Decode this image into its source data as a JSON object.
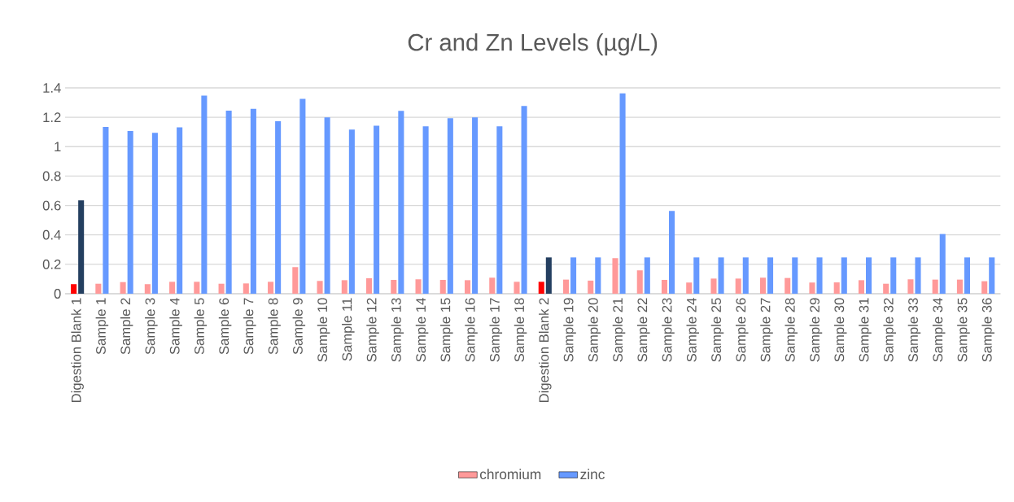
{
  "chart_data": {
    "type": "bar",
    "title": "Cr and Zn Levels (µg/L)",
    "categories": [
      "Digestion Blank 1",
      "Sample 1",
      "Sample 2",
      "Sample 3",
      "Sample 4",
      "Sample 5",
      "Sample 6",
      "Sample 7",
      "Sample 8",
      "Sample 9",
      "Sample 10",
      "Sample 11",
      "Sample 12",
      "Sample 13",
      "Sample 14",
      "Sample 15",
      "Sample 16",
      "Sample 17",
      "Sample 18",
      "Digestion Blank 2",
      "Sample 19",
      "Sample 20",
      "Sample 21",
      "Sample 22",
      "Sample 23",
      "Sample 24",
      "Sample 25",
      "Sample 26",
      "Sample 27",
      "Sample 28",
      "Sample 29",
      "Sample 30",
      "Sample 31",
      "Sample 32",
      "Sample 33",
      "Sample 34",
      "Sample 35",
      "Sample 36"
    ],
    "series": [
      {
        "name": "chromium",
        "color": "#ff9999",
        "colors": [
          "#ff0000",
          "#ff9999",
          "#ff9999",
          "#ff9999",
          "#ff9999",
          "#ff9999",
          "#ff9999",
          "#ff9999",
          "#ff9999",
          "#ff9999",
          "#ff9999",
          "#ff9999",
          "#ff9999",
          "#ff9999",
          "#ff9999",
          "#ff9999",
          "#ff9999",
          "#ff9999",
          "#ff9999",
          "#ff0000",
          "#ff9999",
          "#ff9999",
          "#ff9999",
          "#ff9999",
          "#ff9999",
          "#ff9999",
          "#ff9999",
          "#ff9999",
          "#ff9999",
          "#ff9999",
          "#ff9999",
          "#ff9999",
          "#ff9999",
          "#ff9999",
          "#ff9999",
          "#ff9999",
          "#ff9999",
          "#ff9999"
        ],
        "values": [
          0.065,
          0.068,
          0.079,
          0.065,
          0.081,
          0.081,
          0.068,
          0.07,
          0.081,
          0.181,
          0.087,
          0.092,
          0.105,
          0.094,
          0.098,
          0.094,
          0.092,
          0.109,
          0.081,
          0.081,
          0.096,
          0.089,
          0.242,
          0.159,
          0.094,
          0.076,
          0.103,
          0.103,
          0.109,
          0.107,
          0.076,
          0.077,
          0.092,
          0.068,
          0.098,
          0.096,
          0.096,
          0.085
        ]
      },
      {
        "name": "zinc",
        "color": "#6699ff",
        "colors": [
          "#243f60",
          "#6699ff",
          "#6699ff",
          "#6699ff",
          "#6699ff",
          "#6699ff",
          "#6699ff",
          "#6699ff",
          "#6699ff",
          "#6699ff",
          "#6699ff",
          "#6699ff",
          "#6699ff",
          "#6699ff",
          "#6699ff",
          "#6699ff",
          "#6699ff",
          "#6699ff",
          "#6699ff",
          "#243f60",
          "#6699ff",
          "#6699ff",
          "#6699ff",
          "#6699ff",
          "#6699ff",
          "#6699ff",
          "#6699ff",
          "#6699ff",
          "#6699ff",
          "#6699ff",
          "#6699ff",
          "#6699ff",
          "#6699ff",
          "#6699ff",
          "#6699ff",
          "#6699ff",
          "#6699ff",
          "#6699ff"
        ],
        "values": [
          0.635,
          1.135,
          1.107,
          1.094,
          1.131,
          1.347,
          1.245,
          1.258,
          1.173,
          1.325,
          1.199,
          1.116,
          1.142,
          1.244,
          1.138,
          1.194,
          1.199,
          1.138,
          1.277,
          0.247,
          0.247,
          0.247,
          1.363,
          0.247,
          0.563,
          0.247,
          0.247,
          0.247,
          0.247,
          0.247,
          0.247,
          0.247,
          0.247,
          0.247,
          0.247,
          0.406,
          0.247,
          0.247
        ]
      }
    ],
    "ylim": [
      0,
      1.4
    ],
    "yticks": [
      0,
      0.2,
      0.4,
      0.6,
      0.8,
      1,
      1.2,
      1.4
    ],
    "grid": "y",
    "legend": "bottom"
  }
}
